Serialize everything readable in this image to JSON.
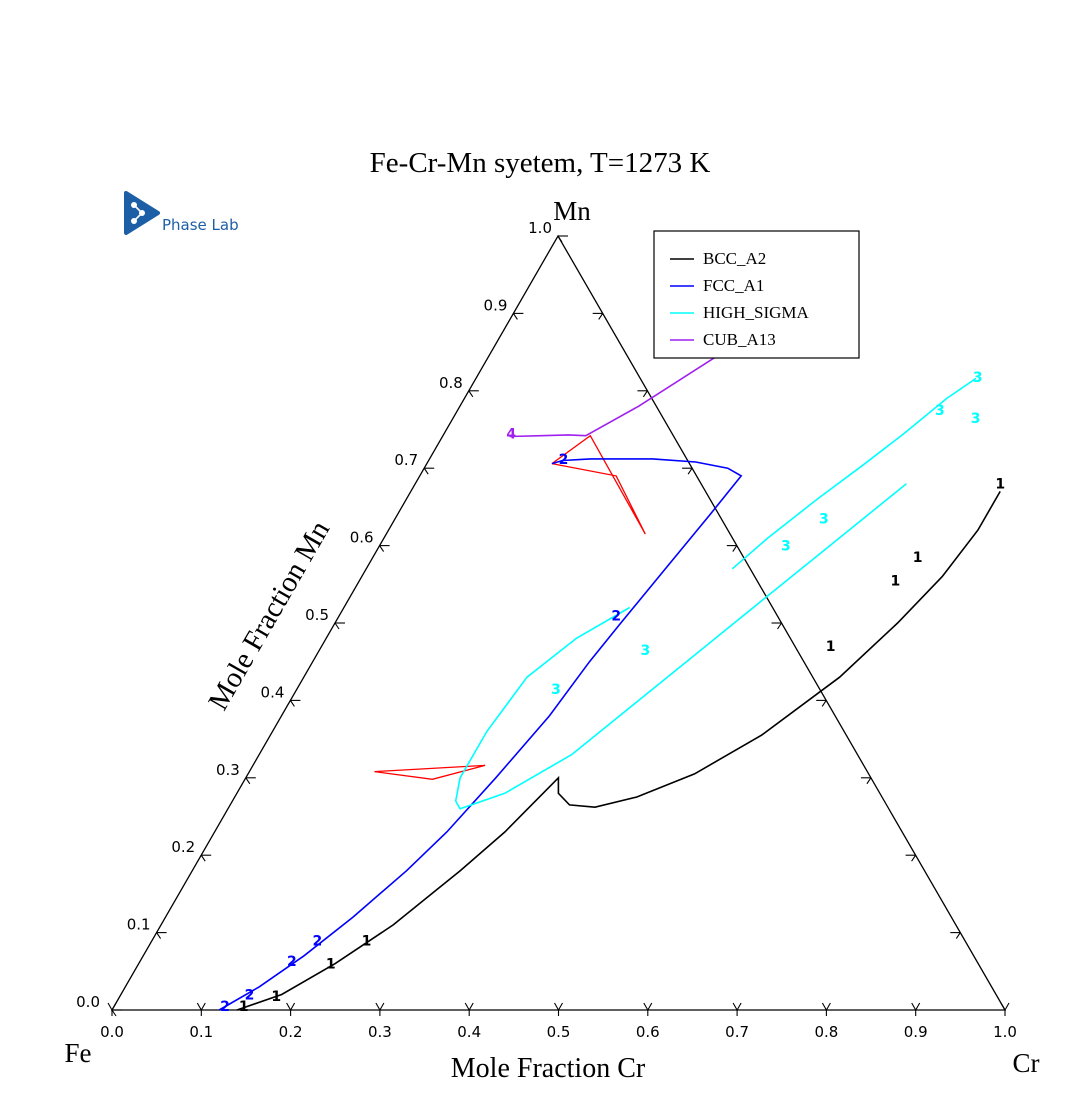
{
  "logo": {
    "text": "Phase Lab",
    "color": "#1d5fa6"
  },
  "chart_data": {
    "type": "ternary",
    "title": "Fe-Cr-Mn syetem, T=1273 K",
    "corners": {
      "left": "Fe",
      "right": "Cr",
      "top": "Mn"
    },
    "xlabel": "Mole Fraction Cr",
    "ylabel": "Mole Fraction Mn",
    "ticks": [
      0.0,
      0.1,
      0.2,
      0.3,
      0.4,
      0.5,
      0.6,
      0.7,
      0.8,
      0.9,
      1.0
    ],
    "tick_labels": [
      "0.0",
      "0.1",
      "0.2",
      "0.3",
      "0.4",
      "0.5",
      "0.6",
      "0.7",
      "0.8",
      "0.9",
      "1.0"
    ],
    "legend_position": "top-right",
    "series": [
      {
        "name": "BCC_A2",
        "color": "#000000",
        "marker": "1",
        "points": [
          [
            0.14,
            0.0
          ],
          [
            0.18,
            0.02
          ],
          [
            0.22,
            0.06
          ],
          [
            0.26,
            0.11
          ],
          [
            0.3,
            0.18
          ],
          [
            0.325,
            0.23
          ],
          [
            0.35,
            0.3
          ],
          [
            0.36,
            0.28
          ],
          [
            0.38,
            0.265
          ],
          [
            0.41,
            0.262
          ],
          [
            0.45,
            0.275
          ],
          [
            0.5,
            0.305
          ],
          [
            0.55,
            0.355
          ],
          [
            0.6,
            0.43
          ],
          [
            0.63,
            0.5
          ],
          [
            0.65,
            0.56
          ],
          [
            0.66,
            0.62
          ],
          [
            0.66,
            0.67
          ]
        ],
        "markers": [
          [
            0.145,
            0.005
          ],
          [
            0.175,
            0.018
          ],
          [
            0.215,
            0.06
          ],
          [
            0.24,
            0.09
          ],
          [
            0.57,
            0.47
          ],
          [
            0.6,
            0.555
          ],
          [
            0.61,
            0.585
          ],
          [
            0.655,
            0.68
          ]
        ]
      },
      {
        "name": "FCC_A1",
        "color": "#0000ff",
        "marker": "2",
        "points": [
          [
            0.12,
            0.0
          ],
          [
            0.15,
            0.03
          ],
          [
            0.18,
            0.07
          ],
          [
            0.21,
            0.12
          ],
          [
            0.24,
            0.18
          ],
          [
            0.26,
            0.23
          ],
          [
            0.28,
            0.3
          ],
          [
            0.3,
            0.38
          ],
          [
            0.31,
            0.45
          ],
          [
            0.32,
            0.5
          ],
          [
            0.335,
            0.57
          ],
          [
            0.35,
            0.64
          ],
          [
            0.36,
            0.69
          ],
          [
            0.34,
            0.7
          ],
          [
            0.3,
            0.708
          ],
          [
            0.25,
            0.712
          ],
          [
            0.18,
            0.712
          ],
          [
            0.15,
            0.71
          ],
          [
            0.14,
            0.706
          ]
        ],
        "markers": [
          [
            0.124,
            0.005
          ],
          [
            0.144,
            0.02
          ],
          [
            0.17,
            0.063
          ],
          [
            0.185,
            0.09
          ],
          [
            0.31,
            0.51
          ],
          [
            0.15,
            0.712
          ]
        ]
      },
      {
        "name": "HIGH_SIGMA",
        "color": "#00ffff",
        "marker": "3",
        "points": [
          [
            0.41,
            0.57
          ],
          [
            0.43,
            0.61
          ],
          [
            0.46,
            0.66
          ],
          [
            0.49,
            0.705
          ],
          [
            0.515,
            0.745
          ],
          [
            0.54,
            0.79
          ],
          [
            0.56,
            0.816
          ]
        ],
        "points2": [
          [
            0.55,
            0.68
          ],
          [
            0.51,
            0.61
          ],
          [
            0.47,
            0.54
          ],
          [
            0.43,
            0.47
          ],
          [
            0.39,
            0.4
          ],
          [
            0.35,
            0.33
          ],
          [
            0.3,
            0.28
          ],
          [
            0.26,
            0.26
          ],
          [
            0.25,
            0.27
          ],
          [
            0.24,
            0.3
          ],
          [
            0.24,
            0.36
          ],
          [
            0.25,
            0.43
          ],
          [
            0.28,
            0.48
          ],
          [
            0.32,
            0.52
          ]
        ],
        "markers": [
          [
            0.54,
            0.775
          ],
          [
            0.561,
            0.818
          ],
          [
            0.585,
            0.765
          ],
          [
            0.48,
            0.635
          ],
          [
            0.455,
            0.6
          ],
          [
            0.365,
            0.465
          ],
          [
            0.29,
            0.415
          ]
        ]
      },
      {
        "name": "CUB_A13",
        "color": "#a020f0",
        "marker": "4",
        "points": [
          [
            0.075,
            0.741
          ],
          [
            0.11,
            0.742
          ],
          [
            0.14,
            0.743
          ],
          [
            0.16,
            0.742
          ],
          [
            0.2,
            0.78
          ],
          [
            0.26,
            0.85
          ],
          [
            0.3,
            0.9
          ],
          [
            0.305,
            0.905
          ]
        ],
        "markers": [
          [
            0.075,
            0.745
          ],
          [
            0.285,
            0.88
          ],
          [
            0.31,
            0.905
          ]
        ]
      }
    ],
    "tie_lines": {
      "color": "#ff0000",
      "points": [
        [
          0.14,
          0.706
        ],
        [
          0.165,
          0.742
        ],
        [
          0.29,
          0.615
        ],
        [
          0.22,
          0.69
        ],
        [
          0.14,
          0.706
        ]
      ],
      "points2": [
        [
          0.14,
          0.308
        ],
        [
          0.26,
          0.316
        ],
        [
          0.21,
          0.298
        ],
        [
          0.14,
          0.308
        ]
      ]
    }
  }
}
